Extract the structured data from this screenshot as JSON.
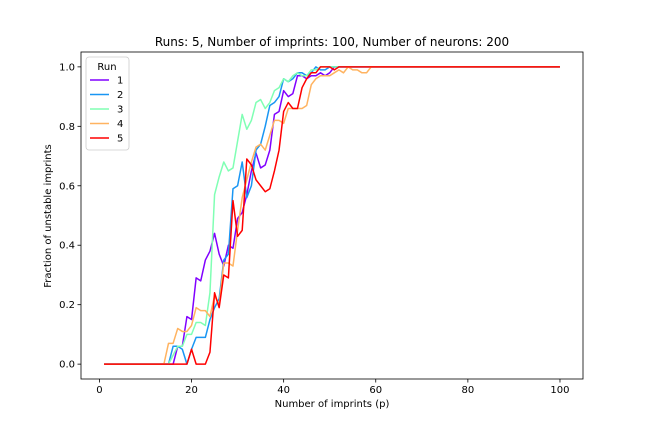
{
  "chart_data": {
    "type": "line",
    "title": "Runs: 5, Number of imprints: 100, Number of neurons: 200",
    "xlabel": "Number of imprints (p)",
    "ylabel": "Fraction of unstable imprints",
    "xlim": [
      -4,
      105
    ],
    "ylim": [
      -0.05,
      1.05
    ],
    "xticks": [
      0,
      20,
      40,
      60,
      80,
      100
    ],
    "yticks": [
      0.0,
      0.2,
      0.4,
      0.6,
      0.8,
      1.0
    ],
    "xtick_labels": [
      "0",
      "20",
      "40",
      "60",
      "80",
      "100"
    ],
    "ytick_labels": [
      "0.0",
      "0.2",
      "0.4",
      "0.6",
      "0.8",
      "1.0"
    ],
    "grid": false,
    "legend": {
      "title": "Run",
      "placement": "top-left"
    },
    "series": [
      {
        "name": "1",
        "color": "#8000ff",
        "x": [
          1,
          14,
          15,
          16,
          17,
          18,
          19,
          20,
          21,
          22,
          23,
          24,
          25,
          26,
          27,
          28,
          29,
          30,
          31,
          32,
          33,
          34,
          35,
          36,
          37,
          38,
          39,
          40,
          41,
          42,
          43,
          44,
          45,
          46,
          47,
          48,
          49,
          50,
          51,
          52,
          53,
          54,
          55,
          56,
          57,
          58,
          59,
          60,
          100
        ],
        "y": [
          0,
          0,
          0,
          0,
          0.06,
          0.06,
          0.16,
          0.15,
          0.29,
          0.28,
          0.35,
          0.38,
          0.44,
          0.37,
          0.33,
          0.4,
          0.39,
          0.49,
          0.51,
          0.57,
          0.65,
          0.71,
          0.66,
          0.67,
          0.72,
          0.84,
          0.85,
          0.92,
          0.9,
          0.91,
          0.97,
          0.97,
          0.96,
          0.97,
          0.97,
          0.98,
          0.97,
          0.98,
          1,
          1,
          1,
          1,
          1,
          1,
          1,
          1,
          1,
          1,
          1
        ]
      },
      {
        "name": "2",
        "color": "#1996f3",
        "x": [
          1,
          15,
          16,
          17,
          18,
          19,
          20,
          21,
          22,
          23,
          24,
          25,
          26,
          27,
          28,
          29,
          30,
          31,
          32,
          33,
          34,
          35,
          36,
          37,
          38,
          39,
          40,
          41,
          42,
          43,
          44,
          45,
          46,
          47,
          48,
          49,
          50,
          51,
          52,
          53,
          54,
          55,
          56,
          57,
          58,
          59,
          60,
          100
        ],
        "y": [
          0,
          0,
          0.06,
          0.06,
          0.05,
          0,
          0.05,
          0.09,
          0.09,
          0.09,
          0.15,
          0.19,
          0.22,
          0.35,
          0.37,
          0.59,
          0.6,
          0.68,
          0.56,
          0.6,
          0.72,
          0.74,
          0.8,
          0.87,
          0.88,
          0.9,
          0.96,
          0.95,
          0.96,
          0.98,
          0.98,
          0.97,
          0.98,
          1,
          0.99,
          0.99,
          1,
          1,
          1,
          1,
          1,
          1,
          1,
          1,
          1,
          1,
          1,
          1
        ]
      },
      {
        "name": "3",
        "color": "#80ffb4",
        "x": [
          1,
          15,
          16,
          17,
          18,
          19,
          20,
          21,
          22,
          23,
          24,
          25,
          26,
          27,
          28,
          29,
          30,
          31,
          32,
          33,
          34,
          35,
          36,
          37,
          38,
          39,
          40,
          41,
          42,
          43,
          44,
          45,
          46,
          47,
          48,
          49,
          50,
          51,
          52,
          53,
          54,
          55,
          56,
          57,
          58,
          59,
          60,
          100
        ],
        "y": [
          0,
          0,
          0.03,
          0.06,
          0.06,
          0.1,
          0.1,
          0.14,
          0.14,
          0.13,
          0.24,
          0.57,
          0.63,
          0.68,
          0.65,
          0.66,
          0.75,
          0.84,
          0.79,
          0.82,
          0.88,
          0.89,
          0.86,
          0.88,
          0.92,
          0.93,
          0.96,
          0.95,
          0.97,
          0.98,
          0.97,
          0.97,
          0.99,
          0.99,
          1,
          1,
          1,
          1,
          1,
          1,
          1,
          1,
          1,
          1,
          1,
          1,
          1,
          1
        ]
      },
      {
        "name": "4",
        "color": "#ffb360",
        "x": [
          1,
          14,
          15,
          16,
          17,
          18,
          19,
          20,
          21,
          22,
          23,
          24,
          25,
          26,
          27,
          28,
          29,
          30,
          31,
          32,
          33,
          34,
          35,
          36,
          37,
          38,
          39,
          40,
          41,
          42,
          43,
          44,
          45,
          46,
          47,
          48,
          49,
          50,
          51,
          52,
          53,
          54,
          55,
          56,
          57,
          58,
          59,
          60,
          100
        ],
        "y": [
          0,
          0,
          0.07,
          0.07,
          0.12,
          0.11,
          0.11,
          0.13,
          0.19,
          0.18,
          0.18,
          0.16,
          0.23,
          0.2,
          0.34,
          0.34,
          0.33,
          0.45,
          0.56,
          0.62,
          0.68,
          0.73,
          0.74,
          0.72,
          0.77,
          0.82,
          0.82,
          0.81,
          0.86,
          0.86,
          0.86,
          0.86,
          0.87,
          0.94,
          0.96,
          0.97,
          0.97,
          0.97,
          0.98,
          0.99,
          0.98,
          1,
          0.99,
          0.99,
          0.98,
          0.98,
          1,
          1,
          1
        ]
      },
      {
        "name": "5",
        "color": "#ff0000",
        "x": [
          1,
          19,
          20,
          21,
          22,
          23,
          24,
          25,
          26,
          27,
          28,
          29,
          30,
          31,
          32,
          33,
          34,
          35,
          36,
          37,
          38,
          39,
          40,
          41,
          42,
          43,
          44,
          45,
          46,
          47,
          48,
          49,
          50,
          51,
          52,
          53,
          54,
          55,
          56,
          57,
          58,
          59,
          60,
          100
        ],
        "y": [
          0,
          0,
          0.05,
          0,
          0,
          0,
          0.04,
          0.24,
          0.19,
          0.3,
          0.29,
          0.55,
          0.43,
          0.45,
          0.69,
          0.67,
          0.62,
          0.6,
          0.58,
          0.59,
          0.65,
          0.72,
          0.85,
          0.88,
          0.86,
          0.86,
          0.93,
          0.96,
          0.98,
          0.98,
          1,
          1,
          1,
          0.99,
          1,
          1,
          1,
          1,
          1,
          1,
          1,
          1,
          1,
          1
        ]
      }
    ]
  }
}
